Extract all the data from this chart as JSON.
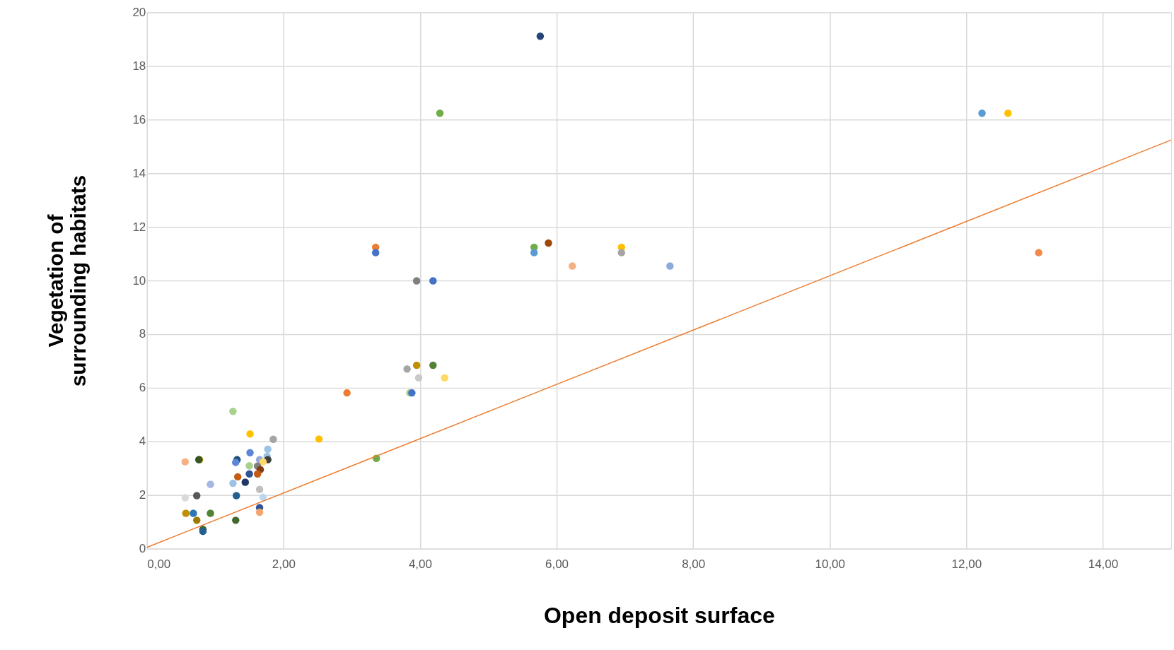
{
  "chart_data": {
    "type": "scatter",
    "xlabel": "Open deposit surface",
    "ylabel": "Vegetation of\nsurrounding habitats",
    "xlim": [
      0,
      15
    ],
    "ylim": [
      0,
      20
    ],
    "xticks": [
      {
        "value": 0,
        "label": "0,00"
      },
      {
        "value": 2,
        "label": "2,00"
      },
      {
        "value": 4,
        "label": "4,00"
      },
      {
        "value": 6,
        "label": "6,00"
      },
      {
        "value": 8,
        "label": "8,00"
      },
      {
        "value": 10,
        "label": "10,00"
      },
      {
        "value": 12,
        "label": "12,00"
      },
      {
        "value": 14,
        "label": "14,00"
      }
    ],
    "yticks": [
      0,
      2,
      4,
      6,
      8,
      10,
      12,
      14,
      16,
      18,
      20
    ],
    "grid": true,
    "marker": "circle",
    "series": [
      {
        "x": [
          5.76,
          4.29,
          12.23,
          12.61,
          3.35,
          3.35,
          5.67,
          5.67,
          5.88,
          6.23,
          6.95,
          6.95,
          7.66,
          13.06,
          3.95,
          4.19,
          3.81,
          3.95,
          4.19,
          3.98,
          4.36,
          2.93,
          3.85,
          3.88,
          2.52,
          3.36,
          1.26,
          1.51,
          1.85,
          1.77,
          1.51,
          1.76,
          0.56,
          0.77,
          0.76,
          1.32,
          1.3,
          1.65,
          1.77,
          1.7,
          1.5,
          1.62,
          1.66,
          1.33,
          1.5,
          1.62,
          1.44,
          0.93,
          1.26,
          1.65,
          0.56,
          0.73,
          1.31,
          1.7,
          1.65,
          1.65,
          0.57,
          0.68,
          0.93,
          0.73,
          1.3,
          0.82,
          0.82
        ],
        "values": [
          19.11,
          16.24,
          16.24,
          16.24,
          11.24,
          11.04,
          11.24,
          11.04,
          11.4,
          10.54,
          11.24,
          11.04,
          10.54,
          11.04,
          9.99,
          9.99,
          6.7,
          6.84,
          6.84,
          6.37,
          6.37,
          5.81,
          5.81,
          5.81,
          4.09,
          3.37,
          5.12,
          4.28,
          4.08,
          3.71,
          3.58,
          3.45,
          3.24,
          3.32,
          3.32,
          3.32,
          3.22,
          3.32,
          3.32,
          3.24,
          3.09,
          3.08,
          2.95,
          2.68,
          2.79,
          2.79,
          2.48,
          2.4,
          2.44,
          2.21,
          1.9,
          1.98,
          1.98,
          1.92,
          1.53,
          1.36,
          1.32,
          1.32,
          1.32,
          1.06,
          1.06,
          0.72,
          0.65
        ],
        "colors": [
          "#264478",
          "#70ad47",
          "#5b9bd5",
          "#ffc000",
          "#ed7d31",
          "#4472c4",
          "#70ad47",
          "#5b9bd5",
          "#9e480e",
          "#f4b183",
          "#ffc000",
          "#a5a5a5",
          "#8faadc",
          "#f08a4b",
          "#7f7f7f",
          "#4472c4",
          "#a5a5a5",
          "#bf9000",
          "#548235",
          "#c9c9c9",
          "#ffd966",
          "#ed7d31",
          "#a9d18e",
          "#4472c4",
          "#ffc000",
          "#70ad47",
          "#a9d18e",
          "#ffc000",
          "#a5a5a5",
          "#9dc3e6",
          "#5b87d6",
          "#9dc3e6",
          "#f4b183",
          "#bf9000",
          "#375623",
          "#1f4e79",
          "#5b87d6",
          "#8faadc",
          "#404040",
          "#ffd966",
          "#a9d18e",
          "#7f7f7f",
          "#843c0c",
          "#c55a11",
          "#2f5597",
          "#c55a11",
          "#203864",
          "#a4b8e4",
          "#9dc3e6",
          "#bfbfbf",
          "#d9d9d9",
          "#595959",
          "#255e91",
          "#bdd7ee",
          "#2e5597",
          "#f4a470",
          "#bf9000",
          "#2e75b6",
          "#548235",
          "#9c7a00",
          "#43682b",
          "#43682b",
          "#255e91"
        ]
      },
      {
        "type": "line",
        "x": [
          0,
          15
        ],
        "values": [
          0.05,
          15.24
        ],
        "color": "#ed7d31",
        "line_style": "solid",
        "marker": "none"
      }
    ]
  }
}
